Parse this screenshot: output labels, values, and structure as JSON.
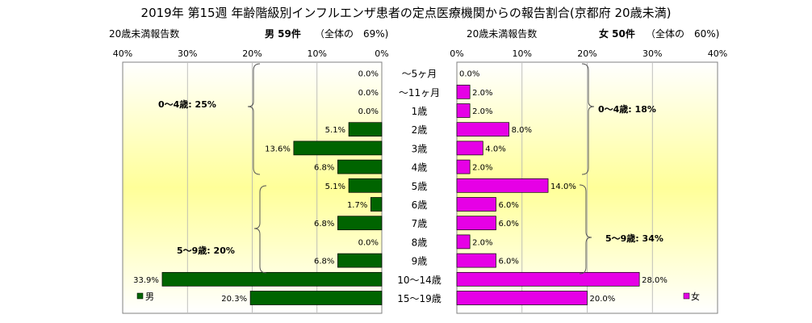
{
  "title": "2019年 第15週 年齢階級別インフルエンザ患者の定点医療機関からの報告割合(京都府 20歳未満)",
  "left_header": {
    "label": "20歳未満報告数",
    "gender_count": "男 59件",
    "share": "（全体の　69%)"
  },
  "right_header": {
    "label": "20歳未満報告数",
    "gender_count": "女 50件",
    "share": "（全体の　60%)"
  },
  "chart_data": {
    "type": "bar",
    "orientation": "horizontal-butterfly",
    "categories": [
      "〜5ヶ月",
      "〜11ヶ月",
      "1歳",
      "2歳",
      "3歳",
      "4歳",
      "5歳",
      "6歳",
      "7歳",
      "8歳",
      "9歳",
      "10〜14歳",
      "15〜19歳"
    ],
    "series": [
      {
        "name": "男",
        "values": [
          0.0,
          0.0,
          0.0,
          5.1,
          13.6,
          6.8,
          5.1,
          1.7,
          6.8,
          0.0,
          6.8,
          33.9,
          20.3
        ],
        "color": "#006400"
      },
      {
        "name": "女",
        "values": [
          0.0,
          2.0,
          2.0,
          8.0,
          4.0,
          2.0,
          14.0,
          6.0,
          6.0,
          2.0,
          6.0,
          28.0,
          20.0
        ],
        "color": "#e600e6"
      }
    ],
    "xlim": [
      0,
      40
    ],
    "ticks": [
      "40%",
      "30%",
      "20%",
      "10%",
      "0%"
    ],
    "ticks_right": [
      "0%",
      "10%",
      "20%",
      "30%",
      "40%"
    ],
    "grid": true,
    "annotations": {
      "left_0_4": "0〜4歳: 25%",
      "left_5_9": "5〜9歳: 20%",
      "right_0_4": "0〜4歳: 18%",
      "right_5_9": "5〜9歳: 34%"
    },
    "legend": {
      "left": "男",
      "right": "女"
    }
  }
}
